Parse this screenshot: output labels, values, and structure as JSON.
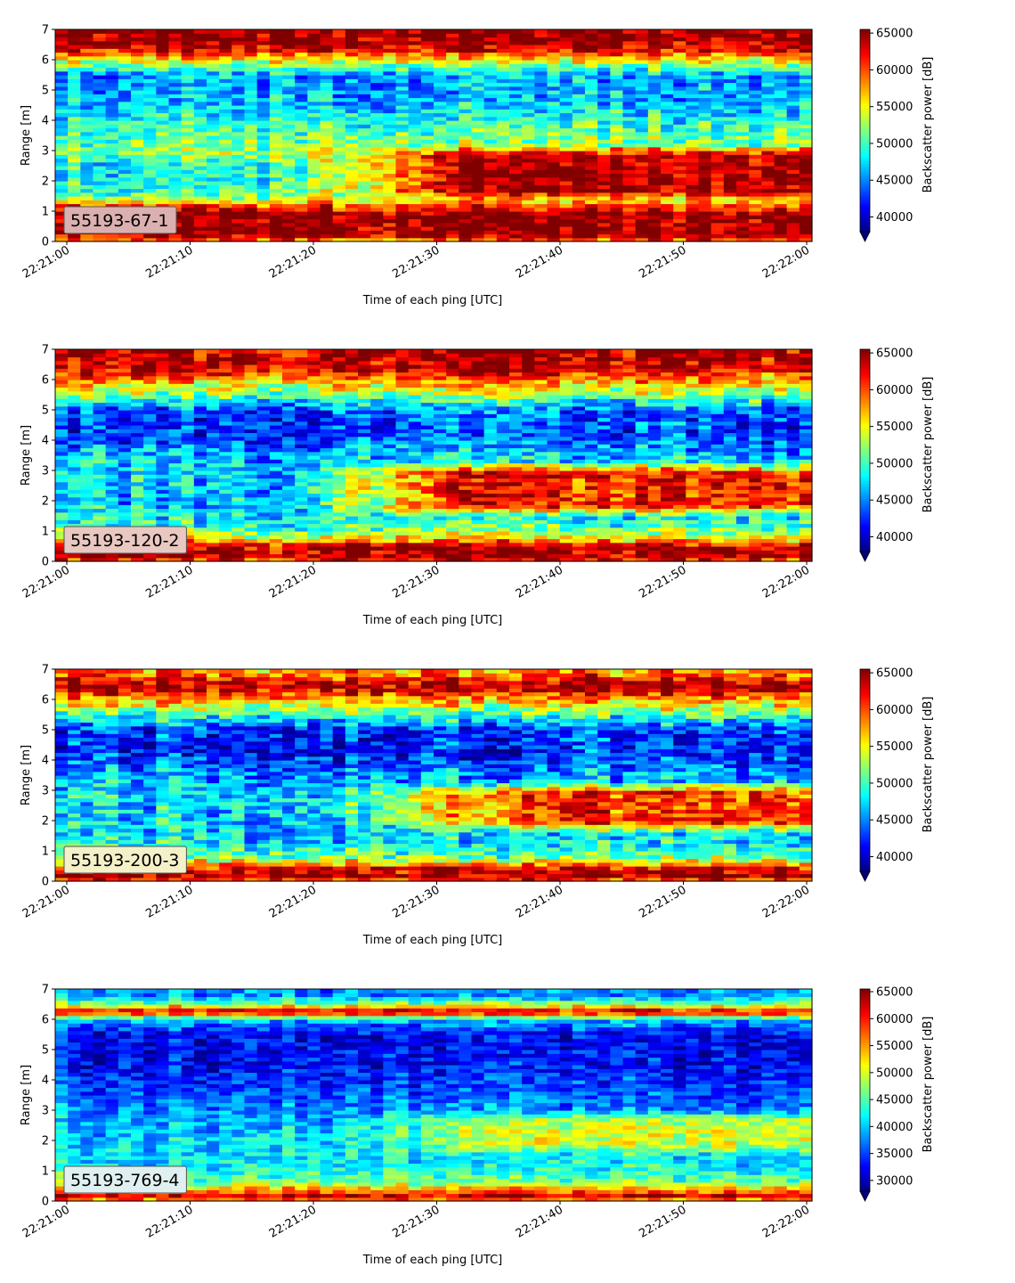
{
  "chart_data": [
    {
      "type": "heatmap",
      "panel_label": "55193-67-1",
      "label_box_color": "#dbb0b0",
      "xlabel": "Time of each ping [UTC]",
      "ylabel": "Range [m]",
      "x_ticks": [
        "22:21:00",
        "22:21:10",
        "22:21:20",
        "22:21:30",
        "22:21:40",
        "22:21:50",
        "22:22:00"
      ],
      "y_ticks": [
        "0",
        "1",
        "2",
        "3",
        "4",
        "5",
        "6",
        "7"
      ],
      "x_range": [
        "22:21:00",
        "22:22:00"
      ],
      "ylim": [
        0,
        7
      ],
      "colorbar": {
        "label": "Backscatter power [dB]",
        "ticks": [
          40000,
          45000,
          50000,
          55000,
          60000,
          65000
        ],
        "range": [
          38000,
          65500
        ],
        "colormap": "jet",
        "extend": "min"
      },
      "profile": [
        {
          "range": 0.0,
          "value": 58000
        },
        {
          "range": 0.25,
          "value": 65000
        },
        {
          "range": 0.9,
          "value": 65000
        },
        {
          "range": 1.2,
          "value": 60000
        },
        {
          "range": 1.5,
          "value": 51000
        },
        {
          "range": 2.0,
          "value": 48000
        },
        {
          "range": 2.5,
          "value": 49000
        },
        {
          "range": 3.0,
          "value": 52000
        },
        {
          "range": 3.5,
          "value": 51000
        },
        {
          "range": 4.2,
          "value": 48000
        },
        {
          "range": 4.8,
          "value": 46000
        },
        {
          "range": 5.5,
          "value": 46000
        },
        {
          "range": 6.0,
          "value": 55000
        },
        {
          "range": 6.3,
          "value": 62000
        },
        {
          "range": 6.6,
          "value": 65000
        },
        {
          "range": 7.0,
          "value": 65000
        }
      ],
      "feature": {
        "low": 1.3,
        "high": 3.2,
        "t_start": 0.3,
        "value": 64500
      },
      "noise": 5000
    },
    {
      "type": "heatmap",
      "panel_label": "55193-120-2",
      "label_box_color": "#e8c8c0",
      "xlabel": "Time of each ping [UTC]",
      "ylabel": "Range [m]",
      "x_ticks": [
        "22:21:00",
        "22:21:10",
        "22:21:20",
        "22:21:30",
        "22:21:40",
        "22:21:50",
        "22:22:00"
      ],
      "y_ticks": [
        "0",
        "1",
        "2",
        "3",
        "4",
        "5",
        "6",
        "7"
      ],
      "x_range": [
        "22:21:00",
        "22:22:00"
      ],
      "ylim": [
        0,
        7
      ],
      "colorbar": {
        "label": "Backscatter power [dB]",
        "ticks": [
          40000,
          45000,
          50000,
          55000,
          60000,
          65000
        ],
        "range": [
          38000,
          65500
        ],
        "colormap": "jet",
        "extend": "min"
      },
      "profile": [
        {
          "range": 0.0,
          "value": 60000
        },
        {
          "range": 0.2,
          "value": 65000
        },
        {
          "range": 0.5,
          "value": 64000
        },
        {
          "range": 0.8,
          "value": 55000
        },
        {
          "range": 1.2,
          "value": 50000
        },
        {
          "range": 2.0,
          "value": 47000
        },
        {
          "range": 2.8,
          "value": 48000
        },
        {
          "range": 3.5,
          "value": 47000
        },
        {
          "range": 4.2,
          "value": 43000
        },
        {
          "range": 5.0,
          "value": 44000
        },
        {
          "range": 5.5,
          "value": 52000
        },
        {
          "range": 6.0,
          "value": 58000
        },
        {
          "range": 6.4,
          "value": 64000
        },
        {
          "range": 7.0,
          "value": 64000
        }
      ],
      "feature": {
        "low": 1.5,
        "high": 3.3,
        "t_start": 0.3,
        "value": 61500
      },
      "noise": 5500
    },
    {
      "type": "heatmap",
      "panel_label": "55193-200-3",
      "label_box_color": "#f4f0c8",
      "xlabel": "Time of each ping [UTC]",
      "ylabel": "Range [m]",
      "x_ticks": [
        "22:21:00",
        "22:21:10",
        "22:21:20",
        "22:21:30",
        "22:21:40",
        "22:21:50",
        "22:22:00"
      ],
      "y_ticks": [
        "0",
        "1",
        "2",
        "3",
        "4",
        "5",
        "6",
        "7"
      ],
      "x_range": [
        "22:21:00",
        "22:22:00"
      ],
      "ylim": [
        0,
        7
      ],
      "colorbar": {
        "label": "Backscatter power [dB]",
        "ticks": [
          40000,
          45000,
          50000,
          55000,
          60000,
          65000
        ],
        "range": [
          38000,
          65500
        ],
        "colormap": "jet",
        "extend": "min"
      },
      "profile": [
        {
          "range": 0.0,
          "value": 60000
        },
        {
          "range": 0.2,
          "value": 65000
        },
        {
          "range": 0.45,
          "value": 62000
        },
        {
          "range": 0.8,
          "value": 52000
        },
        {
          "range": 1.3,
          "value": 48000
        },
        {
          "range": 2.0,
          "value": 47000
        },
        {
          "range": 2.8,
          "value": 48000
        },
        {
          "range": 3.5,
          "value": 46000
        },
        {
          "range": 4.2,
          "value": 42500
        },
        {
          "range": 5.0,
          "value": 43000
        },
        {
          "range": 5.5,
          "value": 50000
        },
        {
          "range": 6.0,
          "value": 58000
        },
        {
          "range": 6.4,
          "value": 65000
        },
        {
          "range": 6.8,
          "value": 60000
        },
        {
          "range": 7.0,
          "value": 58000
        }
      ],
      "feature": {
        "low": 1.6,
        "high": 3.3,
        "t_start": 0.35,
        "value": 60500
      },
      "noise": 5500
    },
    {
      "type": "heatmap",
      "panel_label": "55193-769-4",
      "label_box_color": "#e0f0f0",
      "xlabel": "Time of each ping [UTC]",
      "ylabel": "Range [m]",
      "x_ticks": [
        "22:21:00",
        "22:21:10",
        "22:21:20",
        "22:21:30",
        "22:21:40",
        "22:21:50",
        "22:22:00"
      ],
      "y_ticks": [
        "0",
        "1",
        "2",
        "3",
        "4",
        "5",
        "6",
        "7"
      ],
      "x_range": [
        "22:21:00",
        "22:22:00"
      ],
      "ylim": [
        0,
        7
      ],
      "colorbar": {
        "label": "Backscatter power [dB]",
        "ticks": [
          30000,
          35000,
          40000,
          45000,
          50000,
          55000,
          60000,
          65000
        ],
        "range": [
          28000,
          65500
        ],
        "colormap": "jet",
        "extend": "min"
      },
      "profile": [
        {
          "range": 0.0,
          "value": 52000
        },
        {
          "range": 0.15,
          "value": 64000
        },
        {
          "range": 0.35,
          "value": 56000
        },
        {
          "range": 0.7,
          "value": 45000
        },
        {
          "range": 1.2,
          "value": 42000
        },
        {
          "range": 2.0,
          "value": 41000
        },
        {
          "range": 2.8,
          "value": 39000
        },
        {
          "range": 3.5,
          "value": 36000
        },
        {
          "range": 4.5,
          "value": 33000
        },
        {
          "range": 5.5,
          "value": 32500
        },
        {
          "range": 6.0,
          "value": 40000
        },
        {
          "range": 6.25,
          "value": 64000
        },
        {
          "range": 6.5,
          "value": 48000
        },
        {
          "range": 6.8,
          "value": 38000
        },
        {
          "range": 7.0,
          "value": 38000
        }
      ],
      "feature": {
        "low": 1.5,
        "high": 3.0,
        "t_start": 0.35,
        "value": 50000
      },
      "noise": 5500
    }
  ]
}
